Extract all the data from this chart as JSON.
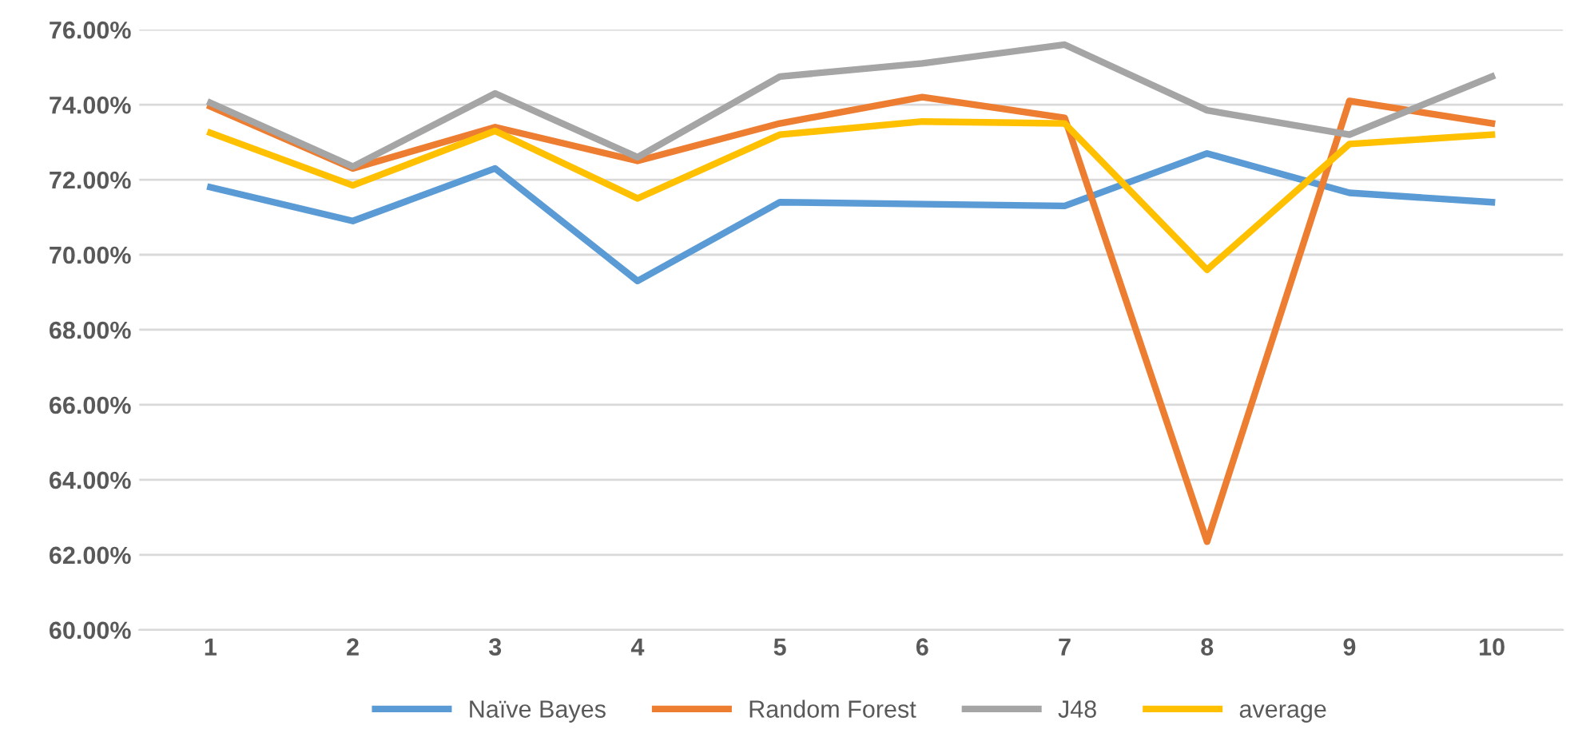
{
  "chart_data": {
    "type": "line",
    "categories": [
      "1",
      "2",
      "3",
      "4",
      "5",
      "6",
      "7",
      "8",
      "9",
      "10"
    ],
    "series": [
      {
        "name": "Naïve Bayes",
        "color": "#5b9bd5",
        "values": [
          71.8,
          70.9,
          72.3,
          69.3,
          71.4,
          71.35,
          71.3,
          72.7,
          71.65,
          71.4
        ]
      },
      {
        "name": "Random Forest",
        "color": "#ed7d31",
        "values": [
          73.95,
          72.3,
          73.4,
          72.5,
          73.5,
          74.2,
          73.65,
          62.35,
          74.1,
          73.5
        ]
      },
      {
        "name": "J48",
        "color": "#a5a5a5",
        "values": [
          74.05,
          72.35,
          74.3,
          72.6,
          74.75,
          75.1,
          75.6,
          73.85,
          73.2,
          74.75
        ]
      },
      {
        "name": "average",
        "color": "#ffc000",
        "values": [
          73.25,
          71.85,
          73.3,
          71.5,
          73.2,
          73.55,
          73.5,
          69.6,
          72.95,
          73.2
        ]
      }
    ],
    "ylim": [
      60,
      76
    ],
    "yticks": [
      {
        "value": 60,
        "label": "60.00%"
      },
      {
        "value": 62,
        "label": "62.00%"
      },
      {
        "value": 64,
        "label": "64.00%"
      },
      {
        "value": 66,
        "label": "66.00%"
      },
      {
        "value": 68,
        "label": "68.00%"
      },
      {
        "value": 70,
        "label": "70.00%"
      },
      {
        "value": 72,
        "label": "72.00%"
      },
      {
        "value": 74,
        "label": "74.00%"
      },
      {
        "value": 76,
        "label": "76.00%"
      }
    ],
    "grid": "y",
    "legend": "bottom",
    "marker": "none",
    "line_style": "solid"
  }
}
